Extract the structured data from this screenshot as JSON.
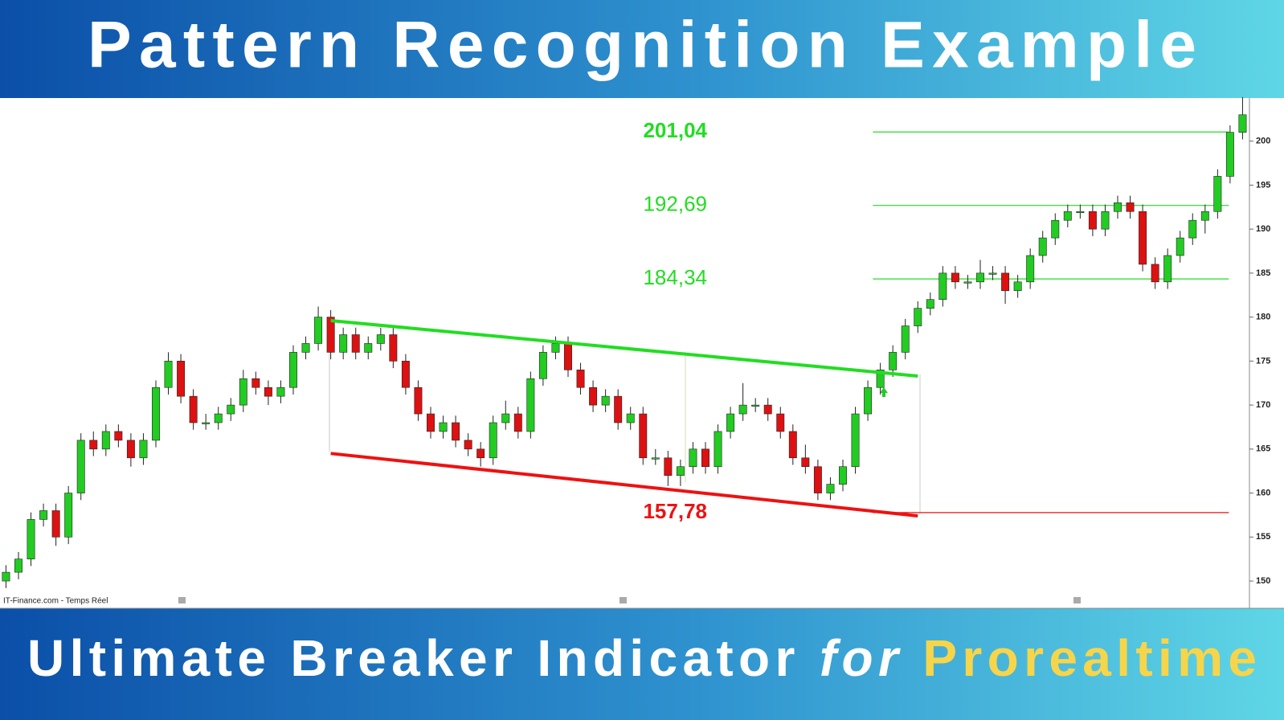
{
  "chart_data": {
    "type": "candlestick",
    "title": "Pattern Recognition Example",
    "subtitle_parts": [
      "Ultimate Breaker Indicator",
      "for",
      "Prorealtime"
    ],
    "source": "IT-Finance.com - Temps Réel",
    "up_color": "#22cc22",
    "down_color": "#dd1111",
    "xlim": [
      -0.35,
      99.55
    ],
    "ylim": [
      146.9,
      204.9
    ],
    "yticks": [
      150,
      155,
      160,
      165,
      170,
      175,
      180,
      185,
      190,
      195,
      200
    ],
    "ohlc": [
      [
        150,
        151.8,
        149.2,
        151
      ],
      [
        151,
        153.3,
        150.2,
        152.5
      ],
      [
        152.5,
        157.8,
        151.7,
        157
      ],
      [
        157,
        158.8,
        156.2,
        158
      ],
      [
        158,
        158.8,
        154,
        155
      ],
      [
        155,
        160.8,
        154.2,
        160
      ],
      [
        160,
        166.8,
        159.2,
        166
      ],
      [
        166,
        167,
        164.2,
        165
      ],
      [
        165,
        167.8,
        164.2,
        167
      ],
      [
        167,
        167.8,
        165.2,
        166
      ],
      [
        166,
        166.8,
        163,
        164
      ],
      [
        164,
        166.8,
        163.2,
        166
      ],
      [
        166,
        172.8,
        165.2,
        172
      ],
      [
        172,
        176,
        171.2,
        175
      ],
      [
        175,
        175.8,
        170.2,
        171
      ],
      [
        171,
        171.8,
        167.2,
        168
      ],
      [
        168,
        169,
        167.2,
        168
      ],
      [
        168,
        169.8,
        167.2,
        169
      ],
      [
        169,
        170.8,
        168.2,
        170
      ],
      [
        170,
        174,
        169.2,
        173
      ],
      [
        173,
        173.8,
        171.2,
        172
      ],
      [
        172,
        172.8,
        170,
        171
      ],
      [
        171,
        172.8,
        170.2,
        172
      ],
      [
        172,
        176.8,
        171.2,
        176
      ],
      [
        176,
        177.8,
        175.2,
        177
      ],
      [
        177,
        181.2,
        176.2,
        180
      ],
      [
        180,
        180.8,
        175.2,
        176
      ],
      [
        176,
        178.8,
        175.2,
        178
      ],
      [
        178,
        178.8,
        175.2,
        176
      ],
      [
        176,
        177.8,
        175.2,
        177
      ],
      [
        177,
        178.8,
        176.2,
        178
      ],
      [
        178,
        178.8,
        174.2,
        175
      ],
      [
        175,
        175.8,
        171.2,
        172
      ],
      [
        172,
        172.8,
        168.2,
        169
      ],
      [
        169,
        169.8,
        166.2,
        167
      ],
      [
        167,
        168.8,
        166.2,
        168
      ],
      [
        168,
        168.8,
        165.2,
        166
      ],
      [
        166,
        166.8,
        164.2,
        165
      ],
      [
        165,
        165.8,
        163,
        164
      ],
      [
        164,
        168.8,
        163.2,
        168
      ],
      [
        168,
        170.5,
        167.2,
        169
      ],
      [
        169,
        169.8,
        166.2,
        167
      ],
      [
        167,
        173.8,
        166.2,
        173
      ],
      [
        173,
        176.8,
        172.2,
        176
      ],
      [
        176,
        177.8,
        175.2,
        177
      ],
      [
        177,
        177.8,
        173.2,
        174
      ],
      [
        174,
        174.8,
        171.2,
        172
      ],
      [
        172,
        172.8,
        169.2,
        170
      ],
      [
        170,
        171.8,
        169.2,
        171
      ],
      [
        171,
        171.8,
        167.2,
        168
      ],
      [
        168,
        169.8,
        167.2,
        169
      ],
      [
        169,
        169.8,
        163.2,
        164
      ],
      [
        164,
        165,
        163.2,
        164
      ],
      [
        164,
        164.8,
        160.8,
        162
      ],
      [
        162,
        163.8,
        160.8,
        163
      ],
      [
        163,
        165.8,
        162.2,
        165
      ],
      [
        165,
        165.8,
        162.2,
        163
      ],
      [
        163,
        167.8,
        162.2,
        167
      ],
      [
        167,
        169.8,
        166.2,
        169
      ],
      [
        169,
        172.5,
        168.2,
        170
      ],
      [
        170,
        170.8,
        169.2,
        170
      ],
      [
        170,
        170.8,
        168.2,
        169
      ],
      [
        169,
        169.8,
        166.2,
        167
      ],
      [
        167,
        167.8,
        163.2,
        164
      ],
      [
        164,
        165.5,
        162.2,
        163
      ],
      [
        163,
        163.8,
        159.2,
        160
      ],
      [
        160,
        161.8,
        159.2,
        161
      ],
      [
        161,
        163.8,
        160.2,
        163
      ],
      [
        163,
        169.8,
        162.2,
        169
      ],
      [
        169,
        172.8,
        168.2,
        172
      ],
      [
        172,
        174.8,
        171.2,
        174
      ],
      [
        174,
        176.8,
        173.2,
        176
      ],
      [
        176,
        179.8,
        175.2,
        179
      ],
      [
        179,
        181.8,
        178.2,
        181
      ],
      [
        181,
        182.8,
        180.2,
        182
      ],
      [
        182,
        185.8,
        181.2,
        185
      ],
      [
        185,
        185.8,
        183.2,
        184
      ],
      [
        184,
        184.8,
        183.2,
        184
      ],
      [
        184,
        186.5,
        183.2,
        185
      ],
      [
        185,
        185.8,
        184.2,
        185
      ],
      [
        185,
        185.8,
        181.5,
        183
      ],
      [
        183,
        184.8,
        182.2,
        184
      ],
      [
        184,
        187.8,
        183.2,
        187
      ],
      [
        187,
        189.8,
        186.2,
        189
      ],
      [
        189,
        191.8,
        188.2,
        191
      ],
      [
        191,
        192.8,
        190.2,
        192
      ],
      [
        192,
        192.8,
        191.2,
        192
      ],
      [
        192,
        192.8,
        189.2,
        190
      ],
      [
        190,
        192.8,
        189.2,
        192
      ],
      [
        192,
        193.8,
        191.2,
        193
      ],
      [
        193,
        193.8,
        191.2,
        192
      ],
      [
        192,
        192.8,
        185.2,
        186
      ],
      [
        186,
        186.8,
        183.2,
        184
      ],
      [
        184,
        187.8,
        183.2,
        187
      ],
      [
        187,
        189.8,
        186.2,
        189
      ],
      [
        189,
        191.8,
        188.2,
        191
      ],
      [
        191,
        192.8,
        189.5,
        192
      ],
      [
        192,
        196.8,
        191.2,
        196
      ],
      [
        196,
        201.8,
        195.2,
        201
      ],
      [
        201,
        205,
        200.2,
        203
      ]
    ],
    "trendlines": [
      {
        "x": [
          26,
          73
        ],
        "values": [
          179.6,
          173.3
        ],
        "color": "#22dd22"
      },
      {
        "x": [
          26,
          73
        ],
        "values": [
          164.5,
          157.4
        ],
        "color": "#ee1111"
      }
    ],
    "levels": [
      {
        "value": 201.04,
        "label": "201,04",
        "color": "#22dd22",
        "bold": true,
        "x": [
          69.4,
          97.9
        ]
      },
      {
        "value": 192.69,
        "label": "192,69",
        "color": "#22dd22",
        "bold": false,
        "x": [
          69.4,
          97.9
        ]
      },
      {
        "value": 184.34,
        "label": "184,34",
        "color": "#22dd22",
        "bold": false,
        "x": [
          69.4,
          97.9
        ]
      },
      {
        "value": 157.78,
        "label": "157,78",
        "color": "#ee1111",
        "bold": true,
        "x": [
          69.4,
          97.9
        ]
      }
    ]
  }
}
